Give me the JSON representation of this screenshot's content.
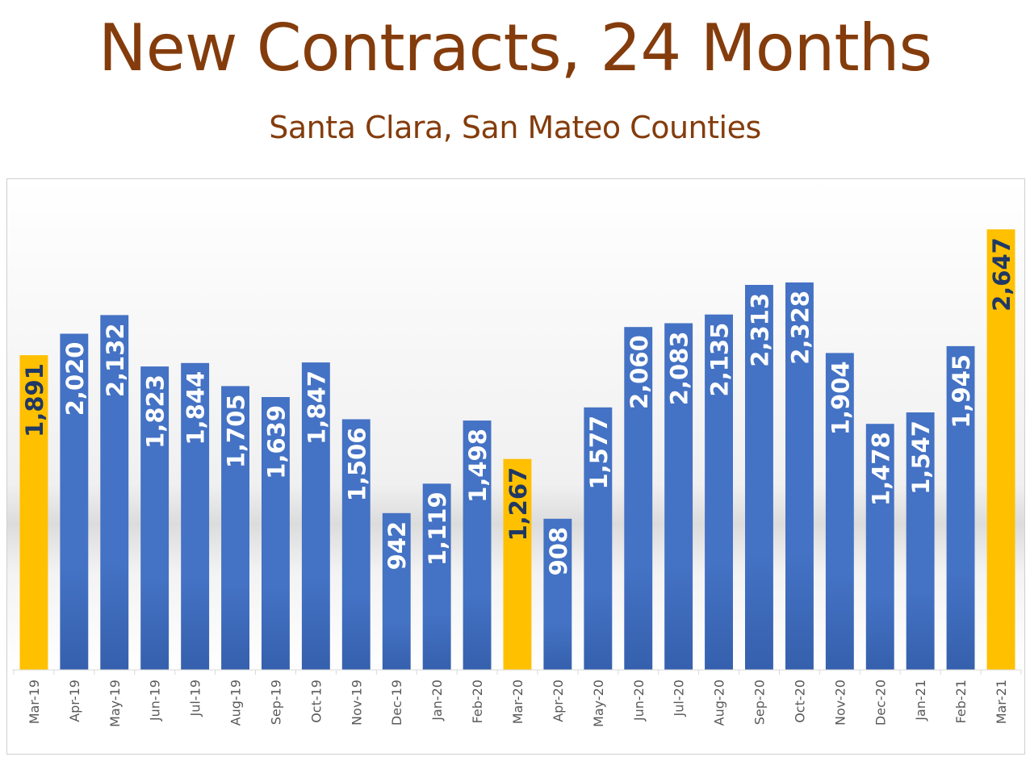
{
  "title": "New Contracts, 24 Months",
  "subtitle": "Santa Clara, San Mateo Counties",
  "colors": {
    "title": "#843c0c",
    "bar_default": "#4472c4",
    "bar_highlight": "#ffc000",
    "label_on_default": "#ffffff",
    "label_on_highlight": "#1f3864"
  },
  "chart_data": {
    "type": "bar",
    "title": "New Contracts, 24 Months",
    "subtitle": "Santa Clara, San Mateo Counties",
    "xlabel": "",
    "ylabel": "",
    "ylim": [
      0,
      2900
    ],
    "grid": false,
    "legend": "none",
    "categories": [
      "Mar-19",
      "Apr-19",
      "May-19",
      "Jun-19",
      "Jul-19",
      "Aug-19",
      "Sep-19",
      "Oct-19",
      "Nov-19",
      "Dec-19",
      "Jan-20",
      "Feb-20",
      "Mar-20",
      "Apr-20",
      "May-20",
      "Jun-20",
      "Jul-20",
      "Aug-20",
      "Sep-20",
      "Oct-20",
      "Nov-20",
      "Dec-20",
      "Jan-21",
      "Feb-21",
      "Mar-21"
    ],
    "values": [
      1891,
      2020,
      2132,
      1823,
      1844,
      1705,
      1639,
      1847,
      1506,
      942,
      1119,
      1498,
      1267,
      908,
      1577,
      2060,
      2083,
      2135,
      2313,
      2328,
      1904,
      1478,
      1547,
      1945,
      2647
    ],
    "value_labels": [
      "1,891",
      "2,020",
      "2,132",
      "1,823",
      "1,844",
      "1,705",
      "1,639",
      "1,847",
      "1,506",
      "942",
      "1,119",
      "1,498",
      "1,267",
      "908",
      "1,577",
      "2,060",
      "2,083",
      "2,135",
      "2,313",
      "2,328",
      "1,904",
      "1,478",
      "1,547",
      "1,945",
      "2,647"
    ],
    "highlighted": [
      "Mar-19",
      "Mar-20",
      "Mar-21"
    ]
  }
}
